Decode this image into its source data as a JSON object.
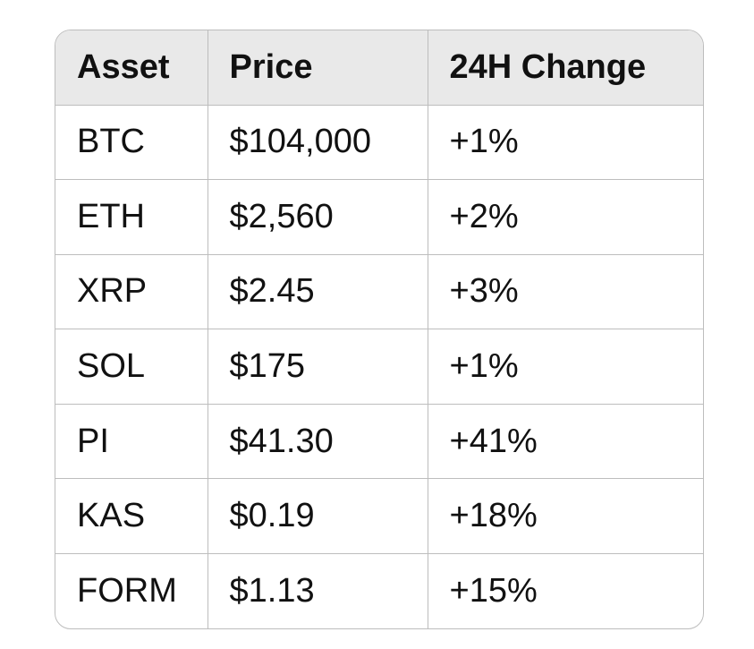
{
  "table": {
    "header": [
      "Asset",
      "Price",
      "24H Change"
    ],
    "rows": [
      [
        "BTC",
        "$104,000",
        "+1%"
      ],
      [
        "ETH",
        "$2,560",
        "+2%"
      ],
      [
        "XRP",
        "$2.45",
        "+3%"
      ],
      [
        "SOL",
        "$175",
        "+1%"
      ],
      [
        "PI",
        "$41.30",
        "+41%"
      ],
      [
        "KAS",
        "$0.19",
        "+18%"
      ],
      [
        "FORM",
        "$1.13",
        "+15%"
      ]
    ]
  }
}
